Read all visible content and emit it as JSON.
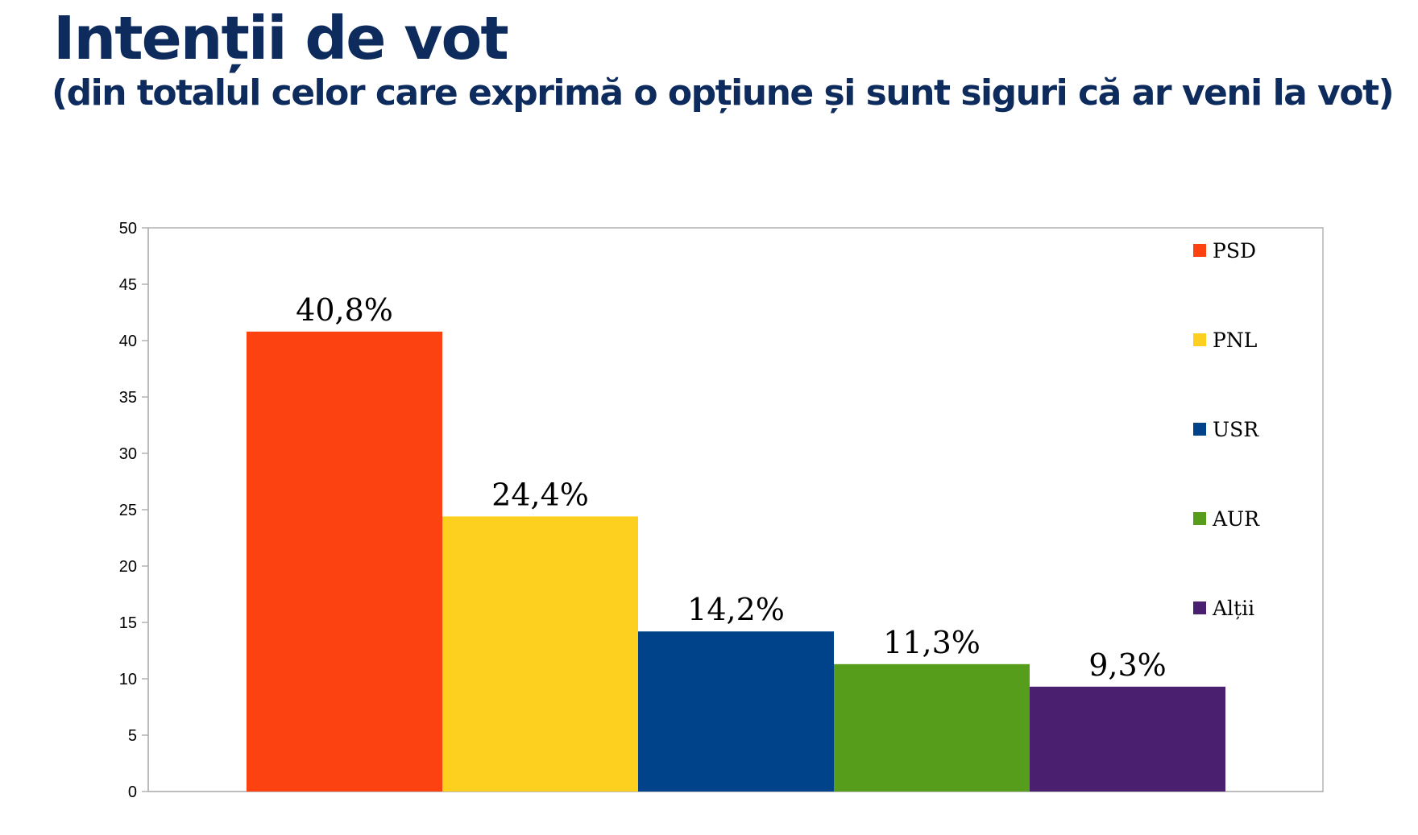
{
  "header": {
    "title": "Intenții de vot",
    "subtitle": "(din totalul celor care exprimă o opțiune și sunt siguri că ar veni la vot)"
  },
  "chart_data": {
    "type": "bar",
    "title": "Intenții de vot",
    "subtitle": "(din totalul celor care exprimă o opțiune și sunt siguri că ar veni la vot)",
    "xlabel": "",
    "ylabel": "",
    "ylim": [
      0,
      50
    ],
    "yticks": [
      "0",
      "5",
      "10",
      "15",
      "20",
      "25",
      "30",
      "35",
      "40",
      "45",
      "50"
    ],
    "grid": false,
    "legend_position": "right",
    "series": [
      {
        "name": "PSD",
        "value": 40.8,
        "label": "40,8%",
        "color": "#fd4212"
      },
      {
        "name": "PNL",
        "value": 24.4,
        "label": "24,4%",
        "color": "#fdd020"
      },
      {
        "name": "USR",
        "value": 14.2,
        "label": "14,2%",
        "color": "#00438a"
      },
      {
        "name": "AUR",
        "value": 11.3,
        "label": "11,3%",
        "color": "#579d1c"
      },
      {
        "name": "Alții",
        "value": 9.3,
        "label": "9,3%",
        "color": "#4b1f6f"
      }
    ]
  }
}
